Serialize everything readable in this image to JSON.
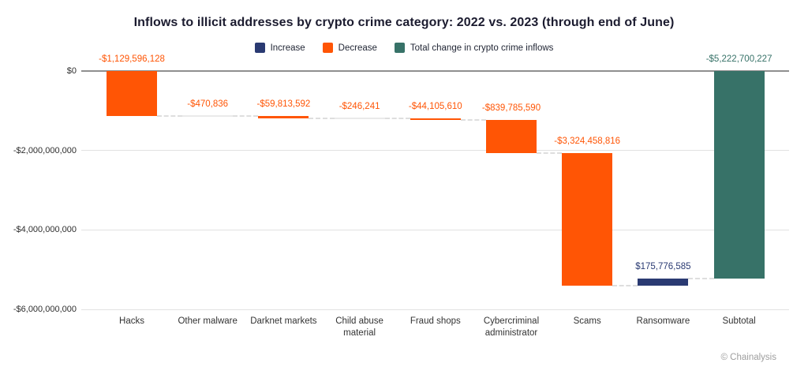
{
  "chart_data": {
    "type": "bar",
    "subtype": "waterfall",
    "title": "Inflows to illicit addresses by crypto crime category: 2022 vs. 2023 (through end of June)",
    "legend_position": "top",
    "grid": true,
    "legend": [
      {
        "key": "increase",
        "label": "Increase",
        "color": "#2a3a72"
      },
      {
        "key": "decrease",
        "label": "Decrease",
        "color": "#ff5505"
      },
      {
        "key": "total",
        "label": "Total change in crypto crime inflows",
        "color": "#377268"
      }
    ],
    "categories": [
      "Hacks",
      "Other malware",
      "Darknet markets",
      "Child abuse material",
      "Fraud shops",
      "Cybercriminal administrator",
      "Scams",
      "Ransomware",
      "Subtotal"
    ],
    "series": [
      {
        "name": "Change in inflows (USD)",
        "values": [
          -1129596128,
          -470836,
          -59813592,
          -246241,
          -44105610,
          -839785590,
          -3324458816,
          175776585,
          -5222700227
        ]
      }
    ],
    "bar_types": [
      "decrease",
      "decrease",
      "decrease",
      "decrease",
      "decrease",
      "decrease",
      "decrease",
      "increase",
      "total"
    ],
    "data_labels": [
      "-$1,129,596,128",
      "-$470,836",
      "-$59,813,592",
      "-$246,241",
      "-$44,105,610",
      "-$839,785,590",
      "-$3,324,458,816",
      "$175,776,585",
      "-$5,222,700,227"
    ],
    "xlabel": "",
    "ylabel": "",
    "y_axis": {
      "range": [
        -6000000000,
        0
      ],
      "ticks": [
        {
          "label": "$0",
          "value": 0
        },
        {
          "label": "-$2,000,000,000",
          "value": -2000000000
        },
        {
          "label": "-$4,000,000,000",
          "value": -4000000000
        },
        {
          "label": "-$6,000,000,000",
          "value": -6000000000
        }
      ]
    }
  },
  "footer": {
    "attribution": "© Chainalysis"
  }
}
